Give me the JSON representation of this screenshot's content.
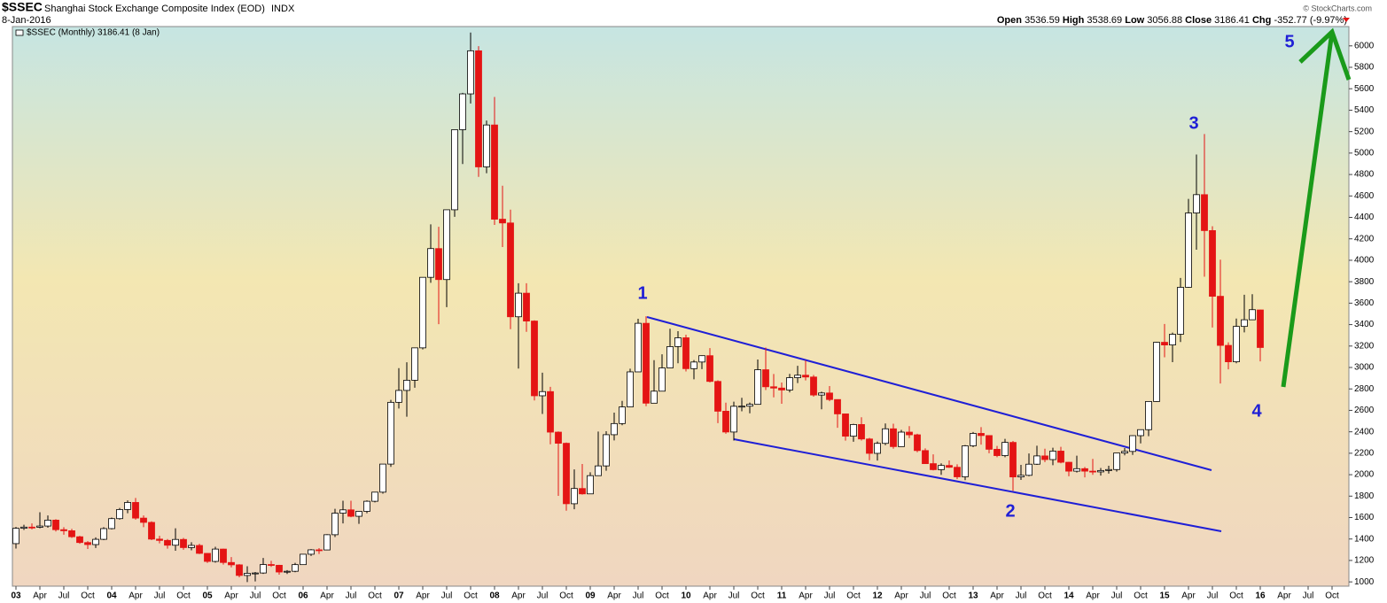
{
  "chart_data": {
    "type": "candlestick",
    "symbol": "$SSEC",
    "title": "Shanghai Stock Exchange Composite Index (EOD)",
    "exchange": "INDX",
    "date": "8-Jan-2016",
    "legend": "$SSEC (Monthly) 3186.41 (8 Jan)",
    "watermark": "© StockCharts.com",
    "header_labels": {
      "open": "Open",
      "high": "High",
      "low": "Low",
      "close": "Close",
      "change": "Chg"
    },
    "change": -352.77,
    "change_percent": {
      "value": -9.97,
      "label": "(-9.97%)"
    },
    "up_color": "#ffffff",
    "down_color": "#e41414",
    "annotations": [
      "1",
      "2",
      "3",
      "4",
      "5"
    ],
    "annotation_color": "#1f1fd6",
    "ylim": [
      960,
      6180
    ],
    "yticks": [
      1000,
      1200,
      1400,
      1600,
      1800,
      2000,
      2200,
      2400,
      2600,
      2800,
      3000,
      3200,
      3400,
      3600,
      3800,
      4000,
      4200,
      4400,
      4600,
      4800,
      5000,
      5200,
      5400,
      5600,
      5800,
      6000
    ],
    "categories": [
      "03",
      null,
      null,
      "Apr",
      null,
      null,
      "Jul",
      null,
      null,
      "Oct",
      null,
      null,
      "04",
      null,
      null,
      "Apr",
      null,
      null,
      "Jul",
      null,
      null,
      "Oct",
      null,
      null,
      "05",
      null,
      null,
      "Apr",
      null,
      null,
      "Jul",
      null,
      null,
      "Oct",
      null,
      null,
      "06",
      null,
      null,
      "Apr",
      null,
      null,
      "Jul",
      null,
      null,
      "Oct",
      null,
      null,
      "07",
      null,
      null,
      "Apr",
      null,
      null,
      "Jul",
      null,
      null,
      "Oct",
      null,
      null,
      "08",
      null,
      null,
      "Apr",
      null,
      null,
      "Jul",
      null,
      null,
      "Oct",
      null,
      null,
      "09",
      null,
      null,
      "Apr",
      null,
      null,
      "Jul",
      null,
      null,
      "Oct",
      null,
      null,
      "10",
      null,
      null,
      "Apr",
      null,
      null,
      "Jul",
      null,
      null,
      "Oct",
      null,
      null,
      "11",
      null,
      null,
      "Apr",
      null,
      null,
      "Jul",
      null,
      null,
      "Oct",
      null,
      null,
      "12",
      null,
      null,
      "Apr",
      null,
      null,
      "Jul",
      null,
      null,
      "Oct",
      null,
      null,
      "13",
      null,
      null,
      "Apr",
      null,
      null,
      "Jul",
      null,
      null,
      "Oct",
      null,
      null,
      "14",
      null,
      null,
      "Apr",
      null,
      null,
      "Jul",
      null,
      null,
      "Oct",
      null,
      null,
      "15",
      null,
      null,
      "Apr",
      null,
      null,
      "Jul",
      null,
      null,
      "Oct",
      null,
      null,
      "16",
      null,
      null,
      "Apr",
      null,
      null,
      "Jul",
      null,
      null,
      "Oct",
      null,
      null
    ],
    "open": [
      1357,
      1500,
      1511,
      1510,
      1521,
      1576,
      1487,
      1477,
      1421,
      1367,
      1348,
      1397,
      1497,
      1590,
      1675,
      1741,
      1595,
      1555,
      1399,
      1387,
      1342,
      1396,
      1320,
      1340,
      1266,
      1191,
      1306,
      1181,
      1159,
      1060,
      1080,
      1083,
      1162,
      1155,
      1092,
      1099,
      1161,
      1258,
      1299,
      1298,
      1440,
      1641,
      1672,
      1612,
      1658,
      1752,
      1837,
      2099,
      2675,
      2786,
      2881,
      3183,
      3841,
      4109,
      3820,
      4471,
      5218,
      5552,
      5954,
      4871,
      5262,
      4383,
      4348,
      3473,
      3693,
      3433,
      2736,
      2775,
      2397,
      2293,
      1729,
      1871,
      1821,
      1991,
      2082,
      2373,
      2477,
      2632,
      2959,
      3412,
      2667,
      2779,
      2996,
      3195,
      3277,
      2989,
      3051,
      3110,
      2870,
      2592,
      2398,
      2638,
      2639,
      2656,
      2979,
      2820,
      2808,
      2790,
      2905,
      2928,
      2911,
      2743,
      2762,
      2701,
      2567,
      2359,
      2468,
      2333,
      2199,
      2292,
      2428,
      2262,
      2397,
      2372,
      2225,
      2103,
      2047,
      2086,
      2069,
      1980,
      2269,
      2385,
      2365,
      2237,
      2178,
      2301,
      1979,
      1994,
      2098,
      2175,
      2141,
      2220,
      2116,
      2033,
      2056,
      2033,
      2026,
      2039,
      2048,
      2202,
      2217,
      2364,
      2420,
      2683,
      3235,
      3210,
      3310,
      3748,
      4441,
      4612,
      4277,
      3664,
      3206,
      3053,
      3383,
      3445,
      3536.59,
      null,
      null,
      null,
      null,
      null,
      null,
      null,
      null,
      null,
      null,
      null
    ],
    "high": [
      1512,
      1533,
      1545,
      1650,
      1620,
      1585,
      1510,
      1495,
      1430,
      1380,
      1415,
      1510,
      1600,
      1690,
      1760,
      1783,
      1620,
      1565,
      1430,
      1400,
      1500,
      1410,
      1370,
      1355,
      1270,
      1328,
      1310,
      1232,
      1165,
      1146,
      1092,
      1223,
      1196,
      1159,
      1110,
      1178,
      1260,
      1306,
      1315,
      1445,
      1682,
      1757,
      1757,
      1660,
      1760,
      1840,
      2100,
      2698,
      2994,
      3049,
      3185,
      3841,
      4335,
      4312,
      4472,
      5218,
      5562,
      6124,
      5997,
      5303,
      5523,
      4695,
      4472,
      3786,
      3786,
      3440,
      2952,
      2819,
      2403,
      2300,
      2049,
      2100,
      2022,
      2402,
      2405,
      2579,
      2688,
      2989,
      3454,
      3478,
      3068,
      3123,
      3361,
      3339,
      3306,
      3069,
      3113,
      3181,
      2880,
      2672,
      2681,
      2717,
      2673,
      3074,
      3186,
      2939,
      2860,
      2940,
      3016,
      3067,
      2930,
      2774,
      2827,
      2703,
      2534,
      2475,
      2536,
      2343,
      2309,
      2478,
      2476,
      2418,
      2453,
      2382,
      2245,
      2190,
      2106,
      2133,
      2097,
      2276,
      2398,
      2444,
      2332,
      2268,
      2334,
      2315,
      2092,
      2198,
      2270,
      2242,
      2252,
      2260,
      2120,
      2177,
      2072,
      2147,
      2063,
      2083,
      2202,
      2248,
      2367,
      2420,
      2683,
      3239,
      3406,
      3325,
      3835,
      4572,
      4986,
      5178,
      4317,
      4006,
      3234,
      3456,
      3678,
      3684,
      3538.69,
      null,
      null,
      null,
      null,
      null,
      null,
      null,
      null,
      null,
      null,
      null
    ],
    "low": [
      1311,
      1484,
      1490,
      1500,
      1505,
      1470,
      1440,
      1410,
      1355,
      1307,
      1316,
      1390,
      1490,
      1580,
      1640,
      1580,
      1510,
      1390,
      1360,
      1310,
      1290,
      1300,
      1295,
      1259,
      1177,
      1180,
      1161,
      1136,
      1043,
      998,
      1004,
      1075,
      1140,
      1067,
      1074,
      1090,
      1160,
      1242,
      1260,
      1295,
      1418,
      1545,
      1603,
      1541,
      1640,
      1742,
      1823,
      2073,
      2617,
      2541,
      2811,
      3168,
      3790,
      3404,
      3563,
      4405,
      4898,
      5462,
      4778,
      4812,
      4330,
      4123,
      3357,
      2990,
      3333,
      2692,
      2566,
      2284,
      1802,
      1664,
      1678,
      1814,
      1844,
      1992,
      2037,
      2320,
      2461,
      2630,
      2959,
      2639,
      2712,
      2805,
      2997,
      3039,
      2963,
      2890,
      2985,
      2861,
      2481,
      2382,
      2319,
      2591,
      2573,
      2660,
      2789,
      2721,
      2661,
      2768,
      2855,
      2879,
      2728,
      2610,
      2685,
      2437,
      2318,
      2307,
      2319,
      2135,
      2132,
      2275,
      2242,
      2282,
      2341,
      2209,
      2100,
      2040,
      1999,
      2063,
      1959,
      1949,
      2257,
      2281,
      2200,
      2163,
      2163,
      1849,
      1951,
      1985,
      2092,
      2117,
      2088,
      2106,
      1985,
      2020,
      1975,
      1999,
      1991,
      2010,
      2029,
      2180,
      2184,
      2292,
      2359,
      2680,
      3095,
      3050,
      3238,
      3743,
      4099,
      3847,
      3373,
      2850,
      2983,
      3039,
      3327,
      3456,
      3056.88,
      null,
      null,
      null,
      null,
      null,
      null,
      null,
      null,
      null,
      null,
      null
    ],
    "close": [
      1500,
      1511,
      1510,
      1521,
      1576,
      1487,
      1477,
      1421,
      1367,
      1348,
      1397,
      1497,
      1590,
      1675,
      1741,
      1595,
      1555,
      1399,
      1387,
      1342,
      1396,
      1320,
      1340,
      1266,
      1191,
      1306,
      1181,
      1159,
      1060,
      1080,
      1083,
      1162,
      1155,
      1092,
      1099,
      1161,
      1258,
      1299,
      1298,
      1440,
      1641,
      1672,
      1612,
      1658,
      1752,
      1837,
      2099,
      2675,
      2786,
      2881,
      3183,
      3841,
      4109,
      3820,
      4471,
      5218,
      5552,
      5954,
      4871,
      5262,
      4383,
      4348,
      3473,
      3693,
      3433,
      2736,
      2775,
      2397,
      2293,
      1729,
      1871,
      1821,
      1991,
      2082,
      2373,
      2477,
      2632,
      2959,
      3412,
      2667,
      2779,
      2996,
      3195,
      3277,
      2989,
      3051,
      3110,
      2870,
      2592,
      2398,
      2638,
      2639,
      2656,
      2979,
      2820,
      2808,
      2790,
      2905,
      2928,
      2911,
      2743,
      2762,
      2701,
      2567,
      2359,
      2468,
      2333,
      2199,
      2292,
      2428,
      2262,
      2397,
      2372,
      2225,
      2103,
      2047,
      2086,
      2069,
      1980,
      2269,
      2385,
      2365,
      2237,
      2178,
      2301,
      1979,
      1994,
      2098,
      2175,
      2141,
      2220,
      2116,
      2033,
      2056,
      2033,
      2026,
      2039,
      2048,
      2202,
      2217,
      2364,
      2420,
      2683,
      3235,
      3210,
      3310,
      3748,
      4441,
      4612,
      4277,
      3664,
      3206,
      3053,
      3383,
      3445,
      3539,
      3186.41,
      null,
      null,
      null,
      null,
      null,
      null,
      null,
      null,
      null,
      null,
      null
    ]
  }
}
